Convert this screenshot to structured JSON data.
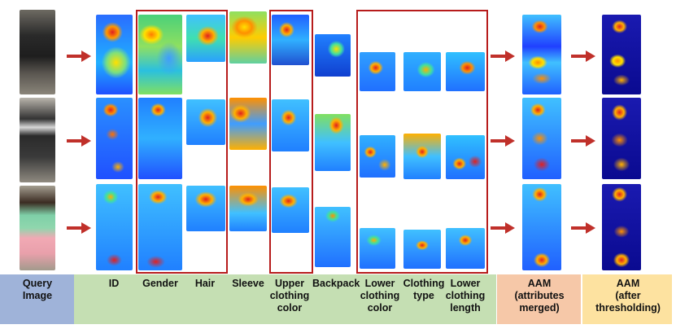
{
  "labels": {
    "query": [
      "Query",
      "Image"
    ],
    "id": "ID",
    "gender": "Gender",
    "hair": "Hair",
    "sleeve": "Sleeve",
    "upper": [
      "Upper",
      "clothing",
      "color"
    ],
    "backpack": "Backpack",
    "lower_color": [
      "Lower",
      "clothing",
      "color"
    ],
    "clothing_type": [
      "Clothing",
      "type"
    ],
    "lower_length": [
      "Lower",
      "clothing",
      "length"
    ],
    "aam_merged": [
      "AAM",
      "(attributes",
      "merged)"
    ],
    "aam_thresh": [
      "AAM",
      "(after",
      "thresholding)"
    ]
  },
  "colors": {
    "query_band": "#9fb3d9",
    "attr_band": "#c5dfb3",
    "aam_band": "#f6c8a8",
    "aam2_band": "#fde2a0",
    "box": "#b71c1c",
    "arrow": "#c0302a"
  }
}
